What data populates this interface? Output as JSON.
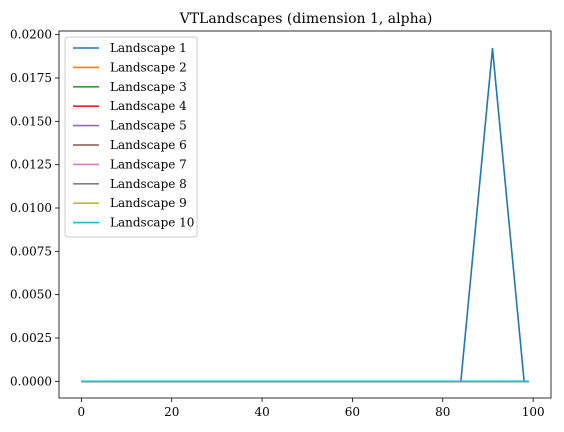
{
  "chart_data": {
    "type": "line",
    "title": "VTLandscapes (dimension 1, alpha)",
    "xlabel": "",
    "ylabel": "",
    "xlim": [
      -4.95,
      103.95
    ],
    "ylim": [
      -0.00096,
      0.02021
    ],
    "xticks": [
      0,
      20,
      40,
      60,
      80,
      100
    ],
    "xtick_labels": [
      "0",
      "20",
      "40",
      "60",
      "80",
      "100"
    ],
    "yticks": [
      0,
      0.0025,
      0.005,
      0.0075,
      0.01,
      0.0125,
      0.015,
      0.0175,
      0.02
    ],
    "ytick_labels": [
      "0.0000",
      "0.0025",
      "0.0050",
      "0.0075",
      "0.0100",
      "0.0125",
      "0.0150",
      "0.0175",
      "0.0200"
    ],
    "grid": false,
    "legend": "top-left",
    "series": [
      {
        "name": "Landscape 1",
        "color": "#1f77b4",
        "x": [
          0,
          84,
          91,
          98,
          99
        ],
        "y": [
          0,
          0,
          0.0192,
          0,
          0
        ]
      },
      {
        "name": "Landscape 2",
        "color": "#ff7f0e",
        "x": [
          0,
          99
        ],
        "y": [
          0,
          0
        ]
      },
      {
        "name": "Landscape 3",
        "color": "#2ca02c",
        "x": [
          0,
          99
        ],
        "y": [
          0,
          0
        ]
      },
      {
        "name": "Landscape 4",
        "color": "#d62728",
        "x": [
          0,
          99
        ],
        "y": [
          0,
          0
        ]
      },
      {
        "name": "Landscape 5",
        "color": "#9467bd",
        "x": [
          0,
          99
        ],
        "y": [
          0,
          0
        ]
      },
      {
        "name": "Landscape 6",
        "color": "#8c564b",
        "x": [
          0,
          99
        ],
        "y": [
          0,
          0
        ]
      },
      {
        "name": "Landscape 7",
        "color": "#e377c2",
        "x": [
          0,
          99
        ],
        "y": [
          0,
          0
        ]
      },
      {
        "name": "Landscape 8",
        "color": "#7f7f7f",
        "x": [
          0,
          99
        ],
        "y": [
          0,
          0
        ]
      },
      {
        "name": "Landscape 9",
        "color": "#bcbd22",
        "x": [
          0,
          99
        ],
        "y": [
          0,
          0
        ]
      },
      {
        "name": "Landscape 10",
        "color": "#17becf",
        "x": [
          0,
          99
        ],
        "y": [
          0,
          0
        ]
      }
    ]
  }
}
